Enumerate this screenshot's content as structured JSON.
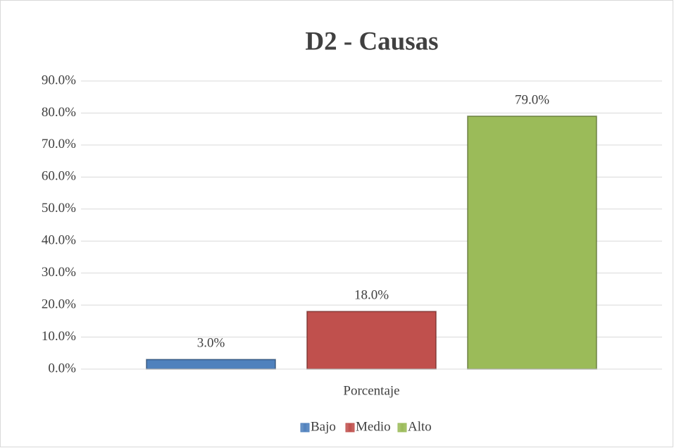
{
  "chart_data": {
    "type": "bar",
    "title": "D2 - Causas",
    "categories": [
      "Porcentaje"
    ],
    "series": [
      {
        "name": "Bajo",
        "color": "#4f81bd",
        "values": [
          3
        ],
        "value_labels": [
          "3.0%"
        ]
      },
      {
        "name": "Medio",
        "color": "#c0504d",
        "values": [
          18
        ],
        "value_labels": [
          "18.0%"
        ]
      },
      {
        "name": "Alto",
        "color": "#9bbb59",
        "values": [
          79
        ],
        "value_labels": [
          "79.0%"
        ]
      }
    ],
    "ylim": [
      0,
      90
    ],
    "yticks": [
      {
        "value": 0,
        "label": "0.0%"
      },
      {
        "value": 10,
        "label": "10.0%"
      },
      {
        "value": 20,
        "label": "20.0%"
      },
      {
        "value": 30,
        "label": "30.0%"
      },
      {
        "value": 40,
        "label": "40.0%"
      },
      {
        "value": 50,
        "label": "50.0%"
      },
      {
        "value": 60,
        "label": "60.0%"
      },
      {
        "value": 70,
        "label": "70.0%"
      },
      {
        "value": 80,
        "label": "80.0%"
      },
      {
        "value": 90,
        "label": "90.0%"
      }
    ],
    "grid": true,
    "legend": "bottom"
  }
}
